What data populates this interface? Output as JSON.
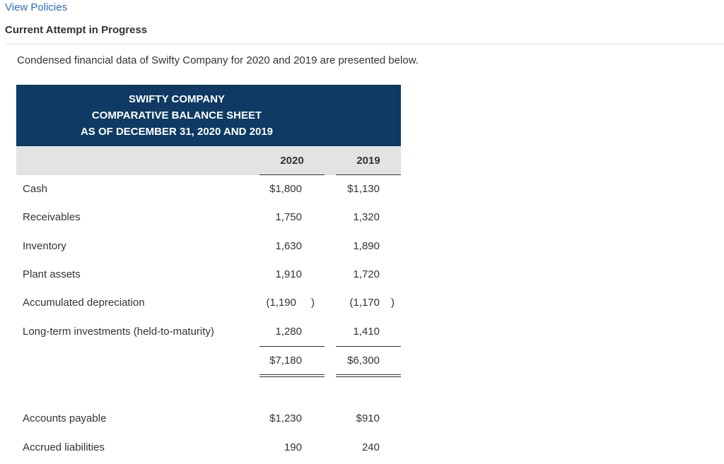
{
  "nav": {
    "view_policies": "View Policies"
  },
  "attempt": {
    "label": "Current Attempt in Progress"
  },
  "intro": "Condensed financial data of Swifty Company for 2020 and 2019 are presented below.",
  "sheet": {
    "title_lines": [
      "SWIFTY COMPANY",
      "COMPARATIVE BALANCE SHEET",
      "AS OF DECEMBER 31, 2020 AND 2019"
    ],
    "years": [
      "2020",
      "2019"
    ],
    "rows": [
      {
        "label": "Cash",
        "v2020": "$1,800",
        "v2019": "$1,130"
      },
      {
        "label": "Receivables",
        "v2020": "1,750",
        "v2019": "1,320"
      },
      {
        "label": "Inventory",
        "v2020": "1,630",
        "v2019": "1,890"
      },
      {
        "label": "Plant assets",
        "v2020": "1,910",
        "v2019": "1,720"
      },
      {
        "label": "Accumulated depreciation",
        "v2020": "(1,190",
        "v2019": "(1,170",
        "close": ")"
      },
      {
        "label": "Long-term investments (held-to-maturity)",
        "v2020": "1,280",
        "v2019": "1,410"
      }
    ],
    "total": {
      "v2020": "$7,180",
      "v2019": "$6,300"
    },
    "liabilities": [
      {
        "label": "Accounts payable",
        "v2020": "$1,230",
        "v2019": "$910"
      },
      {
        "label": "Accrued liabilities",
        "v2020": "190",
        "v2019": "240"
      }
    ]
  }
}
